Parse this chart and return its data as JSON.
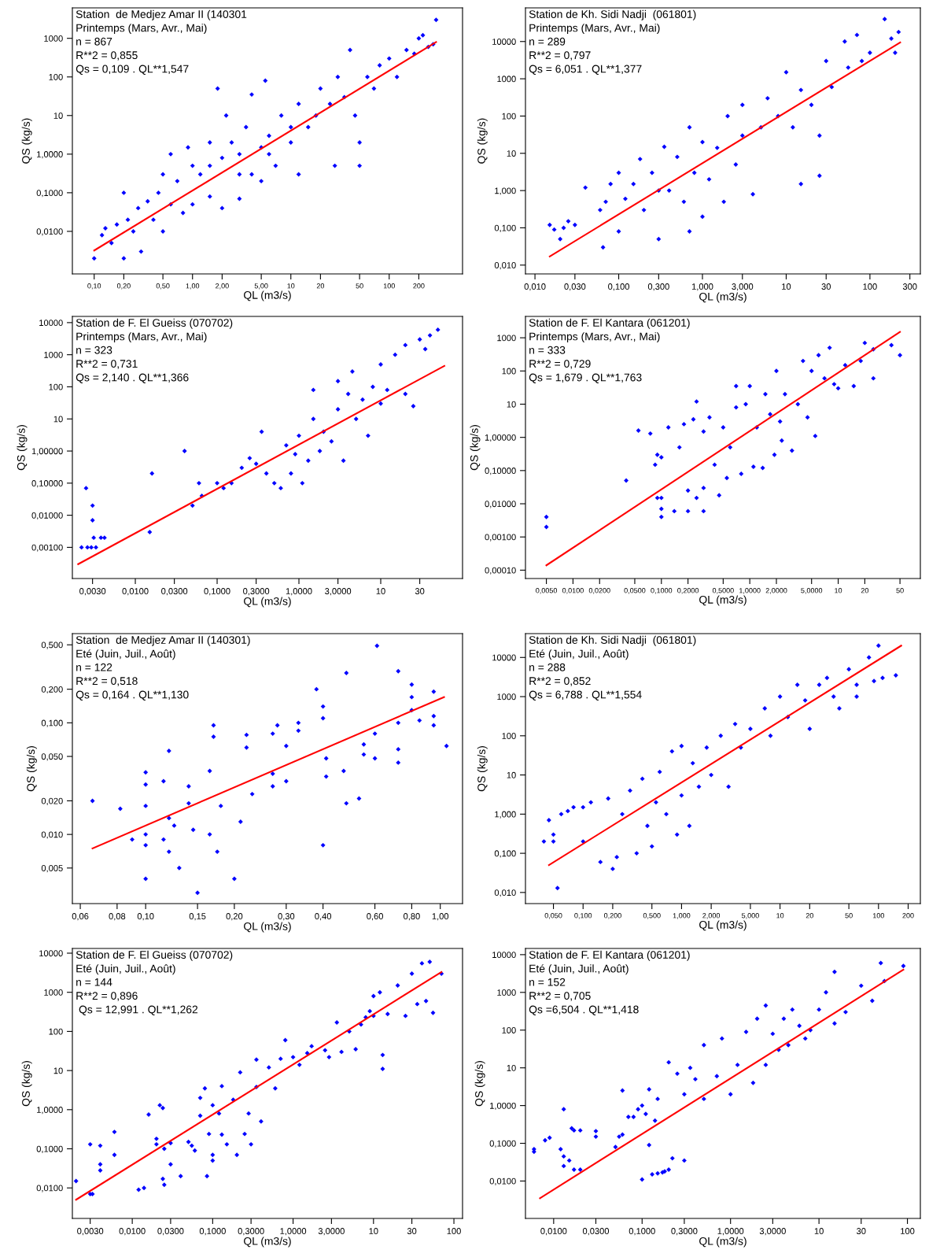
{
  "chart_data": [
    {
      "type": "scatter",
      "title": "Station  de Medjez Amar II (140301",
      "subtitle": "Printemps (Mars, Avr., Mai)",
      "annotations": [
        "n = 867",
        "R**2 = 0,855",
        "Qs = 0,109 . QL**1,547"
      ],
      "xlabel": "QL (m3/s)",
      "ylabel": "QS (kg/s)",
      "log": "xy",
      "xlim": [
        0.06,
        557
      ],
      "ylim": [
        0.00079,
        6150
      ],
      "xticks": [
        {
          "value": 0.1,
          "label": "0,10"
        },
        {
          "value": 0.2,
          "label": "0,20"
        },
        {
          "value": 0.5,
          "label": "0,50"
        },
        {
          "value": 1,
          "label": "1,00"
        },
        {
          "value": 2,
          "label": "2,00"
        },
        {
          "value": 5,
          "label": "5,00"
        },
        10,
        20,
        50,
        100,
        200
      ],
      "yticks": [
        {
          "value": 0.01,
          "label": "0,0100"
        },
        {
          "value": 0.1,
          "label": "0,1000"
        },
        {
          "value": 1,
          "label": "1,0000"
        },
        10,
        100,
        1000
      ],
      "series": [
        {
          "type": "scatter",
          "color": "#0000ff",
          "marker": "diamond",
          "x": [
            0.1,
            0.12,
            0.13,
            0.15,
            0.17,
            0.2,
            0.2,
            0.22,
            0.25,
            0.28,
            0.3,
            0.35,
            0.4,
            0.45,
            0.5,
            0.5,
            0.6,
            0.6,
            0.7,
            0.8,
            0.9,
            1.0,
            1.0,
            1.2,
            1.5,
            1.5,
            1.8,
            2.0,
            2.0,
            2.2,
            2.5,
            3,
            3,
            3.5,
            4,
            4,
            5,
            5,
            5.5,
            6,
            7,
            8,
            10,
            12,
            12,
            15,
            18,
            20,
            25,
            28,
            30,
            35,
            40,
            45,
            50,
            50,
            60,
            70,
            80,
            100,
            120,
            150,
            180,
            200,
            250,
            300,
            280,
            220,
            10,
            6,
            3,
            1.5
          ],
          "values": [
            0.002,
            0.008,
            0.012,
            0.005,
            0.015,
            0.1,
            0.002,
            0.02,
            0.01,
            0.04,
            0.003,
            0.06,
            0.02,
            0.1,
            0.3,
            0.01,
            1.0,
            0.05,
            0.2,
            0.03,
            1.5,
            0.5,
            0.05,
            0.3,
            2,
            0.08,
            50,
            0.8,
            0.04,
            10,
            2,
            0.07,
            0.3,
            5,
            0.3,
            35,
            1.5,
            0.2,
            80,
            3,
            0.5,
            10,
            2,
            20,
            0.3,
            5,
            10,
            50,
            20,
            0.5,
            100,
            30,
            500,
            10,
            2,
            0.5,
            100,
            50,
            200,
            300,
            100,
            500,
            400,
            1000,
            600,
            3000,
            700,
            1200,
            5,
            1,
            1,
            0.5
          ]
        },
        {
          "type": "line",
          "color": "#ff0000",
          "x": [
            0.1,
            300
          ],
          "values": [
            0.0032,
            800
          ]
        }
      ]
    },
    {
      "type": "scatter",
      "title": "Station de Kh. Sidi Nadji  (061801)",
      "subtitle": "Printemps (Mars, Avr., Mai)",
      "annotations": [
        "n = 289",
        "R**2 = 0,797",
        "Qs = 6,051 . QL**1,377"
      ],
      "xlabel": "QL (m3/s)",
      "ylabel": "QS (kg/s)",
      "log": "xy",
      "xlim": [
        0.0077,
        400
      ],
      "ylim": [
        0.0058,
        80000
      ],
      "xticks": [
        {
          "value": 0.01,
          "label": "0,010"
        },
        {
          "value": 0.03,
          "label": "0,030"
        },
        {
          "value": 0.1,
          "label": "0,100"
        },
        {
          "value": 0.3,
          "label": "0,300"
        },
        {
          "value": 1,
          "label": "1,000"
        },
        {
          "value": 3,
          "label": "3,000"
        },
        10,
        30,
        100,
        300
      ],
      "yticks": [
        {
          "value": 0.01,
          "label": "0,010"
        },
        {
          "value": 0.1,
          "label": "0,100"
        },
        {
          "value": 1,
          "label": "1,000"
        },
        10,
        100,
        1000,
        10000
      ],
      "series": [
        {
          "type": "scatter",
          "color": "#0000ff",
          "marker": "diamond",
          "x": [
            0.015,
            0.017,
            0.02,
            0.022,
            0.025,
            0.03,
            0.04,
            0.06,
            0.065,
            0.07,
            0.08,
            0.1,
            0.1,
            0.12,
            0.15,
            0.18,
            0.2,
            0.25,
            0.3,
            0.3,
            0.35,
            0.4,
            0.5,
            0.6,
            0.7,
            0.7,
            0.8,
            1.0,
            1.0,
            1.2,
            1.5,
            1.8,
            2,
            2.5,
            3,
            3,
            4,
            5,
            6,
            8,
            10,
            12,
            15,
            15,
            20,
            25,
            25,
            30,
            35,
            50,
            55,
            70,
            80,
            100,
            150,
            200,
            220,
            180
          ],
          "values": [
            0.12,
            0.09,
            0.05,
            0.1,
            0.15,
            0.12,
            1.2,
            0.3,
            0.03,
            0.5,
            1.5,
            3,
            0.08,
            0.6,
            1.5,
            7,
            0.3,
            3,
            1,
            0.05,
            15,
            1,
            8,
            0.5,
            50,
            0.08,
            3,
            20,
            0.2,
            2,
            14,
            0.5,
            100,
            5,
            200,
            30,
            0.8,
            50,
            300,
            100,
            1500,
            50,
            1.5,
            500,
            200,
            2.5,
            30,
            3000,
            600,
            10000,
            2000,
            15000,
            3000,
            5000,
            40000,
            5000,
            18000,
            12000
          ]
        },
        {
          "type": "line",
          "color": "#ff0000",
          "x": [
            0.015,
            230
          ],
          "values": [
            0.017,
            9500
          ]
        }
      ]
    },
    {
      "type": "scatter",
      "title": "Station de F. El Gueiss (070702)",
      "subtitle": "Printemps (Mars, Avr., Mai)",
      "annotations": [
        "n = 323",
        "R**2 = 0,731",
        "Qs = 2,140 . QL**1,366"
      ],
      "xlabel": "QL (m3/s)",
      "ylabel": "QS (kg/s)",
      "log": "xy",
      "xlim": [
        0.0017,
        100
      ],
      "ylim": [
        0.000107,
        15600
      ],
      "xticks": [
        {
          "value": 0.003,
          "label": "0,0030"
        },
        {
          "value": 0.01,
          "label": "0,0100"
        },
        {
          "value": 0.03,
          "label": "0,0300"
        },
        {
          "value": 0.1,
          "label": "0,1000"
        },
        {
          "value": 0.3,
          "label": "0,3000"
        },
        {
          "value": 1,
          "label": "1,0000"
        },
        {
          "value": 3,
          "label": "3,0000"
        },
        10,
        30
      ],
      "yticks": [
        {
          "value": 0.001,
          "label": "0,00100"
        },
        {
          "value": 0.01,
          "label": "0,01000"
        },
        {
          "value": 0.1,
          "label": "0,10000"
        },
        {
          "value": 1,
          "label": "1,00000"
        },
        10,
        100,
        1000,
        10000
      ],
      "series": [
        {
          "type": "scatter",
          "color": "#0000ff",
          "marker": "diamond",
          "x": [
            0.0022,
            0.0025,
            0.0026,
            0.0029,
            0.003,
            0.003,
            0.0031,
            0.0033,
            0.0038,
            0.0042,
            0.015,
            0.016,
            0.04,
            0.05,
            0.06,
            0.065,
            0.1,
            0.12,
            0.15,
            0.2,
            0.25,
            0.3,
            0.35,
            0.4,
            0.5,
            0.6,
            0.7,
            0.8,
            0.9,
            1,
            1.1,
            1.3,
            1.5,
            1.5,
            1.8,
            2,
            2.5,
            3,
            3,
            3.5,
            4,
            4.5,
            5,
            6,
            7,
            8,
            10,
            10,
            12,
            15,
            20,
            20,
            25,
            30,
            35,
            50,
            40
          ],
          "values": [
            0.001,
            0.07,
            0.001,
            0.001,
            0.02,
            0.007,
            0.002,
            0.001,
            0.002,
            0.002,
            0.003,
            0.2,
            1,
            0.02,
            0.1,
            0.04,
            0.1,
            0.07,
            0.1,
            0.3,
            0.6,
            0.4,
            4,
            0.2,
            0.1,
            0.07,
            1.5,
            0.2,
            0.8,
            3,
            0.1,
            0.5,
            10,
            80,
            1,
            4,
            2,
            20,
            150,
            0.5,
            60,
            300,
            10,
            40,
            3,
            100,
            500,
            30,
            80,
            1000,
            2000,
            60,
            25,
            3000,
            1500,
            6000,
            4000
          ]
        },
        {
          "type": "line",
          "color": "#ff0000",
          "x": [
            0.002,
            60
          ],
          "values": [
            0.0003,
            450
          ]
        }
      ]
    },
    {
      "type": "scatter",
      "title": "Station de F. El Kantara (061201)",
      "subtitle": "Printemps (Mars, Avr., Mai)",
      "annotations": [
        "n = 333",
        "R**2 = 0,729",
        "Qs = 1,679 . QL**1,763"
      ],
      "xlabel": "QL (m3/s)",
      "ylabel": "QS (kg/s)",
      "log": "xy",
      "xlim": [
        0.0029,
        85
      ],
      "ylim": [
        5.6e-05,
        4400
      ],
      "xticks": [
        {
          "value": 0.005,
          "label": "0,0050"
        },
        {
          "value": 0.01,
          "label": "0,0100"
        },
        {
          "value": 0.02,
          "label": "0,0200"
        },
        {
          "value": 0.05,
          "label": "0,0500"
        },
        {
          "value": 0.1,
          "label": "0,1000"
        },
        {
          "value": 0.2,
          "label": "0,2000"
        },
        {
          "value": 0.5,
          "label": "0,5000"
        },
        {
          "value": 1,
          "label": "1,0000"
        },
        {
          "value": 2,
          "label": "2,0000"
        },
        {
          "value": 5,
          "label": "5,0000"
        },
        10,
        20,
        50
      ],
      "yticks": [
        {
          "value": 0.0001,
          "label": "0,00010"
        },
        {
          "value": 0.001,
          "label": "0,00100"
        },
        {
          "value": 0.01,
          "label": "0,01000"
        },
        {
          "value": 0.1,
          "label": "0,10000"
        },
        {
          "value": 1,
          "label": "1,00000"
        },
        10,
        100,
        1000
      ],
      "series": [
        {
          "type": "scatter",
          "color": "#0000ff",
          "marker": "diamond",
          "x": [
            0.005,
            0.005,
            0.04,
            0.055,
            0.075,
            0.085,
            0.09,
            0.09,
            0.1,
            0.1,
            0.1,
            0.1,
            0.12,
            0.14,
            0.16,
            0.18,
            0.2,
            0.2,
            0.23,
            0.25,
            0.25,
            0.3,
            0.3,
            0.3,
            0.35,
            0.4,
            0.45,
            0.5,
            0.55,
            0.6,
            0.7,
            0.7,
            0.8,
            0.9,
            1.0,
            1.1,
            1.2,
            1.4,
            1.5,
            1.7,
            1.9,
            2,
            2.2,
            2.3,
            2.5,
            3,
            3.5,
            4,
            4.5,
            5,
            5.5,
            6,
            7,
            8,
            9,
            10,
            12,
            15,
            18,
            20,
            25,
            25,
            40,
            50
          ],
          "values": [
            0.004,
            0.002,
            0.05,
            1.6,
            1.3,
            0.15,
            0.3,
            0.015,
            0.007,
            0.004,
            0.015,
            0.25,
            2,
            0.006,
            0.5,
            2.5,
            0.006,
            0.025,
            3.5,
            12,
            0.015,
            0.006,
            0.03,
            1.5,
            4,
            0.15,
            0.018,
            2,
            0.06,
            0.5,
            35,
            8,
            0.08,
            10,
            35,
            0.13,
            2,
            0.12,
            20,
            5,
            0.3,
            100,
            3,
            0.8,
            20,
            0.4,
            10,
            200,
            4,
            100,
            1.1,
            300,
            60,
            500,
            40,
            30,
            150,
            35,
            200,
            700,
            60,
            450,
            600,
            300
          ]
        },
        {
          "type": "line",
          "color": "#ff0000",
          "x": [
            0.005,
            50
          ],
          "values": [
            0.00014,
            1500
          ]
        }
      ]
    },
    {
      "type": "scatter",
      "title": "Station  de Medjez Amar II (140301)",
      "subtitle": "Eté (Juin, Juil., Août)",
      "annotations": [
        "n = 122",
        "R**2 = 0,518",
        "Qs = 0,164 . QL**1,130"
      ],
      "xlabel": "QL (m3/s)",
      "ylabel": "QS (kg/s)",
      "log": "xy",
      "xlim": [
        0.0564,
        1.19
      ],
      "ylim": [
        0.0024,
        0.63
      ],
      "xticks": [
        {
          "value": 0.06,
          "label": "0,06"
        },
        {
          "value": 0.08,
          "label": "0,08"
        },
        {
          "value": 0.1,
          "label": "0,10"
        },
        {
          "value": 0.15,
          "label": "0,15"
        },
        {
          "value": 0.2,
          "label": "0,20"
        },
        {
          "value": 0.3,
          "label": "0,30"
        },
        {
          "value": 0.4,
          "label": "0,40"
        },
        {
          "value": 0.6,
          "label": "0,60"
        },
        {
          "value": 0.8,
          "label": "0,80"
        },
        {
          "value": 1,
          "label": "1,00"
        }
      ],
      "yticks": [
        {
          "value": 0.005,
          "label": "0,005"
        },
        {
          "value": 0.01,
          "label": "0,010"
        },
        {
          "value": 0.02,
          "label": "0,020"
        },
        {
          "value": 0.05,
          "label": "0,050"
        },
        {
          "value": 0.1,
          "label": "0,100"
        },
        {
          "value": 0.2,
          "label": "0,200"
        },
        {
          "value": 0.5,
          "label": "0,500"
        }
      ],
      "series": [
        {
          "type": "scatter",
          "color": "#0000ff",
          "marker": "diamond",
          "x": [
            0.066,
            0.082,
            0.09,
            0.1,
            0.1,
            0.1,
            0.1,
            0.1,
            0.1,
            0.115,
            0.115,
            0.12,
            0.12,
            0.12,
            0.125,
            0.13,
            0.14,
            0.14,
            0.145,
            0.15,
            0.165,
            0.165,
            0.17,
            0.17,
            0.175,
            0.18,
            0.2,
            0.21,
            0.22,
            0.22,
            0.23,
            0.27,
            0.27,
            0.27,
            0.28,
            0.3,
            0.3,
            0.33,
            0.33,
            0.38,
            0.4,
            0.4,
            0.4,
            0.41,
            0.41,
            0.47,
            0.48,
            0.48,
            0.53,
            0.55,
            0.55,
            0.6,
            0.6,
            0.61,
            0.72,
            0.72,
            0.72,
            0.72,
            0.8,
            0.8,
            0.8,
            0.85,
            0.95,
            0.95,
            0.95,
            1.05
          ],
          "values": [
            0.02,
            0.017,
            0.009,
            0.036,
            0.028,
            0.018,
            0.01,
            0.008,
            0.004,
            0.03,
            0.009,
            0.056,
            0.014,
            0.007,
            0.012,
            0.005,
            0.027,
            0.019,
            0.011,
            0.003,
            0.037,
            0.01,
            0.095,
            0.075,
            0.007,
            0.018,
            0.004,
            0.013,
            0.078,
            0.06,
            0.023,
            0.08,
            0.035,
            0.027,
            0.095,
            0.062,
            0.03,
            0.1,
            0.085,
            0.2,
            0.14,
            0.11,
            0.008,
            0.048,
            0.033,
            0.037,
            0.28,
            0.019,
            0.021,
            0.064,
            0.052,
            0.08,
            0.048,
            0.49,
            0.29,
            0.1,
            0.058,
            0.044,
            0.22,
            0.17,
            0.13,
            0.105,
            0.19,
            0.115,
            0.095,
            0.062
          ]
        },
        {
          "type": "line",
          "color": "#ff0000",
          "x": [
            0.066,
            1.03
          ],
          "values": [
            0.0075,
            0.17
          ]
        }
      ]
    },
    {
      "type": "scatter",
      "title": "Station de Kh. Sidi Nadji  (061801)",
      "subtitle": "Eté (Juin, Juil., Août)",
      "annotations": [
        "n = 288",
        "R**2 = 0,852",
        "Qs = 6,788 . QL**1,554"
      ],
      "xlabel": "QL (m3/s)",
      "ylabel": "QS (kg/s)",
      "log": "xy",
      "xlim": [
        0.026,
        266
      ],
      "ylim": [
        0.0052,
        40600
      ],
      "xticks": [
        {
          "value": 0.05,
          "label": "0,050"
        },
        {
          "value": 0.1,
          "label": "0,100"
        },
        {
          "value": 0.2,
          "label": "0,200"
        },
        {
          "value": 0.5,
          "label": "0,500"
        },
        {
          "value": 1,
          "label": "1,000"
        },
        {
          "value": 2,
          "label": "2,000"
        },
        {
          "value": 5,
          "label": "5,000"
        },
        10,
        20,
        50,
        100,
        200
      ],
      "yticks": [
        {
          "value": 0.01,
          "label": "0,010"
        },
        {
          "value": 0.1,
          "label": "0,100"
        },
        {
          "value": 1,
          "label": "1,000"
        },
        10,
        100,
        1000,
        10000
      ],
      "series": [
        {
          "type": "scatter",
          "color": "#0000ff",
          "marker": "diamond",
          "x": [
            0.04,
            0.045,
            0.05,
            0.05,
            0.055,
            0.06,
            0.07,
            0.08,
            0.1,
            0.1,
            0.12,
            0.15,
            0.18,
            0.2,
            0.22,
            0.25,
            0.3,
            0.35,
            0.4,
            0.45,
            0.5,
            0.55,
            0.6,
            0.7,
            0.8,
            0.9,
            1,
            1,
            1.2,
            1.3,
            1.5,
            1.8,
            2,
            2.5,
            3,
            3.5,
            4,
            5,
            7,
            8,
            10,
            12,
            15,
            18,
            20,
            25,
            30,
            35,
            40,
            50,
            60,
            80,
            100,
            110,
            150,
            60,
            90
          ],
          "values": [
            0.2,
            0.7,
            0.2,
            0.3,
            0.013,
            1,
            1.2,
            1.5,
            0.2,
            1.5,
            2,
            0.06,
            2.5,
            0.04,
            0.08,
            1,
            4,
            0.1,
            8,
            0.5,
            0.15,
            2,
            12,
            1,
            40,
            0.3,
            55,
            3,
            0.5,
            20,
            5,
            50,
            10,
            100,
            5,
            200,
            50,
            150,
            500,
            100,
            1000,
            300,
            2000,
            800,
            150,
            2000,
            3000,
            1000,
            500,
            5000,
            2000,
            10000,
            20000,
            3000,
            3500,
            1000,
            2500
          ]
        },
        {
          "type": "line",
          "color": "#ff0000",
          "x": [
            0.045,
            170
          ],
          "values": [
            0.05,
            20000
          ]
        }
      ]
    },
    {
      "type": "scatter",
      "title": "Station de F. El Gueiss (070702)",
      "subtitle": "Eté (Juin, Juil., Août)",
      "annotations": [
        "n = 144",
        "R**2 = 0,896",
        " Qs = 12,991 . QL**1,262"
      ],
      "xlabel": "QL (m3/s)",
      "ylabel": "QS (kg/s)",
      "log": "xy",
      "xlim": [
        0.0018,
        128
      ],
      "ylim": [
        0.00166,
        13200
      ],
      "xticks": [
        {
          "value": 0.003,
          "label": "0,0030"
        },
        {
          "value": 0.01,
          "label": "0,0100"
        },
        {
          "value": 0.03,
          "label": "0,0300"
        },
        {
          "value": 0.1,
          "label": "0,1000"
        },
        {
          "value": 0.3,
          "label": "0,3000"
        },
        {
          "value": 1,
          "label": "1,0000"
        },
        {
          "value": 3,
          "label": "3,0000"
        },
        10,
        30,
        100
      ],
      "yticks": [
        {
          "value": 0.01,
          "label": "0,0100"
        },
        {
          "value": 0.1,
          "label": "0,1000"
        },
        {
          "value": 1,
          "label": "1,0000"
        },
        10,
        100,
        1000,
        10000
      ],
      "series": [
        {
          "type": "scatter",
          "color": "#0000ff",
          "marker": "diamond",
          "x": [
            0.002,
            0.003,
            0.0032,
            0.003,
            0.004,
            0.004,
            0.004,
            0.006,
            0.006,
            0.012,
            0.014,
            0.016,
            0.02,
            0.02,
            0.022,
            0.024,
            0.024,
            0.025,
            0.025,
            0.03,
            0.03,
            0.04,
            0.05,
            0.055,
            0.06,
            0.07,
            0.07,
            0.08,
            0.085,
            0.09,
            0.1,
            0.1,
            0.1,
            0.12,
            0.13,
            0.13,
            0.15,
            0.18,
            0.2,
            0.22,
            0.25,
            0.28,
            0.3,
            0.35,
            0.35,
            0.4,
            0.5,
            0.6,
            0.7,
            0.8,
            1,
            1.2,
            1.5,
            1.7,
            2.5,
            2.8,
            3.5,
            4,
            5,
            6,
            7,
            8,
            9,
            10,
            10,
            12,
            13,
            13,
            15,
            20,
            25,
            30,
            35,
            40,
            45,
            50,
            55,
            70
          ],
          "values": [
            0.015,
            0.007,
            0.007,
            0.13,
            0.12,
            0.04,
            0.028,
            0.27,
            0.07,
            0.009,
            0.01,
            0.75,
            0.18,
            0.13,
            1.3,
            1.1,
            0.017,
            0.012,
            0.1,
            0.14,
            0.04,
            0.02,
            0.15,
            0.12,
            0.09,
            2,
            0.7,
            3.5,
            0.02,
            0.24,
            0.07,
            1.3,
            0.05,
            0.8,
            4,
            0.23,
            0.13,
            1.8,
            0.07,
            9,
            0.24,
            0.8,
            0.13,
            3.8,
            19,
            0.5,
            12,
            3.5,
            20,
            60,
            22,
            14,
            28,
            42,
            33,
            22,
            170,
            30,
            100,
            35,
            150,
            230,
            330,
            250,
            800,
            1000,
            25,
            11,
            280,
            1500,
            250,
            3000,
            500,
            5500,
            600,
            6000,
            300,
            3000
          ]
        },
        {
          "type": "line",
          "color": "#ff0000",
          "x": [
            0.002,
            70
          ],
          "values": [
            0.005,
            3300
          ]
        }
      ]
    },
    {
      "type": "scatter",
      "title": "Station de F. El Kantara (061201)",
      "subtitle": "Eté (Juin, Juil., Août)",
      "annotations": [
        "n = 152",
        "R**2 = 0,705",
        "Qs =6,504 . QL**1,418"
      ],
      "xlabel": "QL (m3/s)",
      "ylabel": "QS (kg/s)",
      "log": "xy",
      "xlim": [
        0.0048,
        140
      ],
      "ylim": [
        0.00102,
        14600
      ],
      "xticks": [
        {
          "value": 0.01,
          "label": "0,0100"
        },
        {
          "value": 0.03,
          "label": "0,0300"
        },
        {
          "value": 0.1,
          "label": "0,1000"
        },
        {
          "value": 0.3,
          "label": "0,3000"
        },
        {
          "value": 1,
          "label": "1,0000"
        },
        {
          "value": 3,
          "label": "3,0000"
        },
        10,
        30,
        100
      ],
      "yticks": [
        {
          "value": 0.01,
          "label": "0,0100"
        },
        {
          "value": 0.1,
          "label": "0,1000"
        },
        {
          "value": 1,
          "label": "1,0000"
        },
        10,
        100,
        1000,
        10000
      ],
      "series": [
        {
          "type": "scatter",
          "color": "#0000ff",
          "marker": "diamond",
          "x": [
            0.006,
            0.006,
            0.008,
            0.009,
            0.012,
            0.013,
            0.013,
            0.013,
            0.015,
            0.016,
            0.017,
            0.017,
            0.02,
            0.02,
            0.03,
            0.03,
            0.05,
            0.055,
            0.06,
            0.06,
            0.07,
            0.08,
            0.09,
            0.1,
            0.1,
            0.11,
            0.12,
            0.12,
            0.13,
            0.14,
            0.15,
            0.15,
            0.17,
            0.18,
            0.2,
            0.2,
            0.22,
            0.25,
            0.3,
            0.3,
            0.35,
            0.4,
            0.5,
            0.5,
            0.7,
            0.8,
            1,
            1.2,
            1.5,
            1.8,
            2,
            2.5,
            2.5,
            3,
            3.5,
            4,
            4.5,
            5,
            6,
            7,
            8,
            10,
            12,
            15,
            15,
            20,
            30,
            40,
            50,
            55,
            90
          ],
          "values": [
            0.07,
            0.06,
            0.12,
            0.14,
            0.07,
            0.8,
            0.045,
            0.025,
            0.035,
            0.25,
            0.22,
            0.02,
            0.02,
            0.22,
            0.21,
            0.15,
            0.08,
            0.15,
            2.5,
            0.17,
            0.5,
            0.5,
            0.8,
            1,
            0.011,
            0.6,
            2.7,
            0.09,
            0.015,
            0.4,
            1.5,
            0.016,
            0.017,
            0.018,
            0.02,
            14,
            0.04,
            7,
            0.035,
            2,
            10,
            5,
            1.5,
            40,
            6,
            60,
            2,
            12,
            90,
            4,
            200,
            12,
            450,
            80,
            30,
            200,
            40,
            350,
            130,
            60,
            100,
            350,
            1000,
            150,
            3500,
            300,
            1500,
            600,
            6000,
            2000,
            5000
          ]
        },
        {
          "type": "line",
          "color": "#ff0000",
          "x": [
            0.007,
            90
          ],
          "values": [
            0.0035,
            4000
          ]
        }
      ]
    }
  ]
}
